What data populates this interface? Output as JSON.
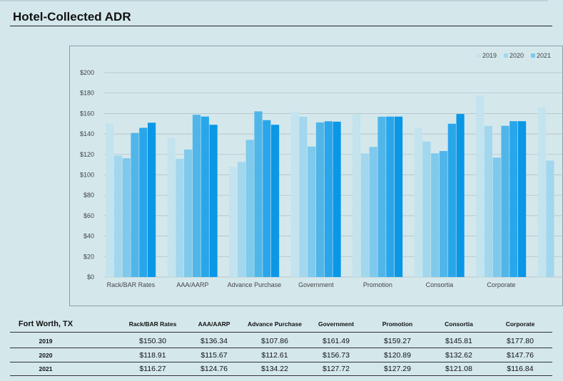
{
  "page": {
    "title": "Hotel-Collected ADR"
  },
  "colors": {
    "series": [
      "#c3e3ee",
      "#a2d7ee",
      "#7ec9ec",
      "#50b6ea",
      "#29a6ea",
      "#0a97e6"
    ],
    "grid": "#aebcc0",
    "text": "#444444"
  },
  "chart_data": {
    "type": "bar",
    "categories": [
      "Rack/BAR Rates",
      "AAA/AARP",
      "Advance Purchase",
      "Government",
      "Promotion",
      "Consortia",
      "Corporate",
      ""
    ],
    "ylim": [
      0,
      200
    ],
    "yticks": [
      "$0",
      "$20",
      "$40",
      "$60",
      "$80",
      "$100",
      "$120",
      "$140",
      "$160",
      "$180",
      "$200"
    ],
    "grid": true,
    "legend_position": "top-right",
    "legend": [
      "2019",
      "2020",
      "2021"
    ],
    "series": [
      {
        "name": "2019",
        "values": [
          150.3,
          136.34,
          107.86,
          161.49,
          159.27,
          145.81,
          177.8,
          166
        ]
      },
      {
        "name": "2020",
        "values": [
          118.91,
          115.67,
          112.61,
          156.73,
          120.89,
          132.62,
          147.76,
          114
        ]
      },
      {
        "name": "2021",
        "values": [
          116.27,
          124.76,
          134.22,
          127.72,
          127.29,
          121.08,
          116.84,
          null
        ]
      },
      {
        "name": "",
        "values": [
          141,
          158.8,
          162.1,
          151.3,
          156.9,
          123.3,
          148,
          null
        ]
      },
      {
        "name": "",
        "values": [
          146,
          157,
          153.5,
          152.4,
          157,
          150,
          152.5,
          null
        ]
      },
      {
        "name": "",
        "values": [
          151,
          149,
          149,
          152,
          157,
          159.5,
          152.5,
          null
        ]
      }
    ]
  },
  "table": {
    "location": "Fort Worth, TX",
    "columns": [
      "Rack/BAR Rates",
      "AAA/AARP",
      "Advance Purchase",
      "Government",
      "Promotion",
      "Consortia",
      "Corporate"
    ],
    "rows": [
      {
        "year": "2019",
        "values": [
          "$150.30",
          "$136.34",
          "$107.86",
          "$161.49",
          "$159.27",
          "$145.81",
          "$177.80"
        ]
      },
      {
        "year": "2020",
        "values": [
          "$118.91",
          "$115.67",
          "$112.61",
          "$156.73",
          "$120.89",
          "$132.62",
          "$147.76"
        ]
      },
      {
        "year": "2021",
        "values": [
          "$116.27",
          "$124.76",
          "$134.22",
          "$127.72",
          "$127.29",
          "$121.08",
          "$116.84"
        ]
      }
    ]
  }
}
